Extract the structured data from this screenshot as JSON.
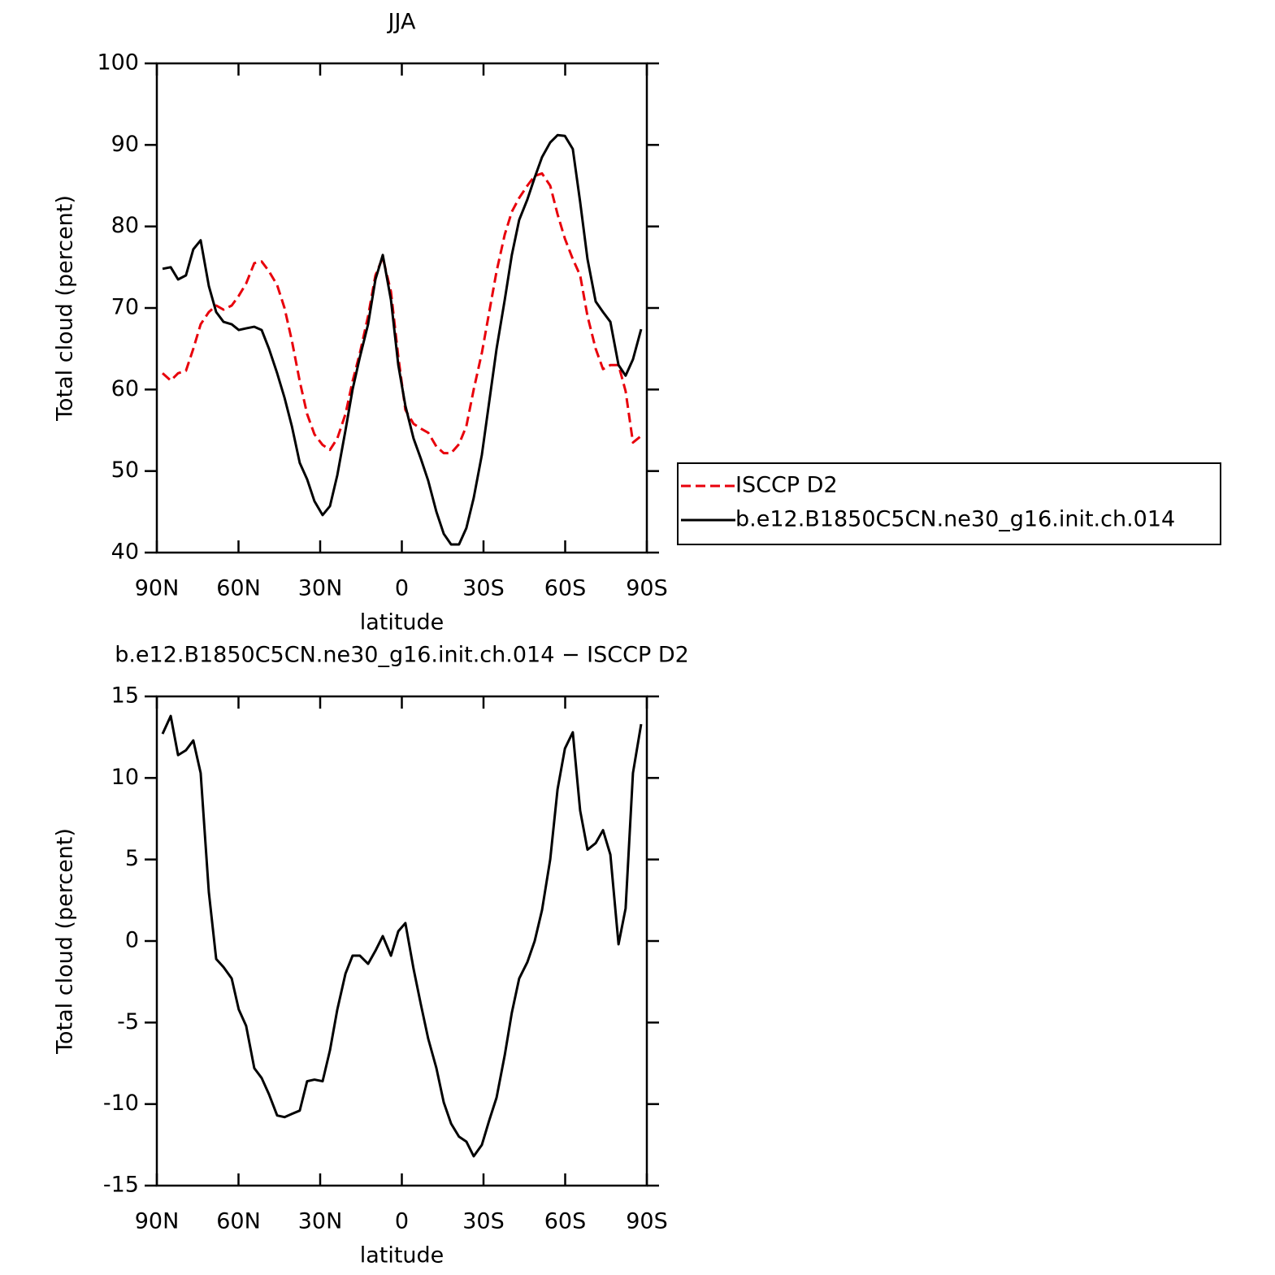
{
  "chart_data": [
    {
      "type": "line",
      "title": "JJA",
      "ylabel": "Total cloud (percent)",
      "xlabel": "latitude",
      "x": [
        87.9,
        84.9,
        82.2,
        79.3,
        76.6,
        73.9,
        70.9,
        68.2,
        65.5,
        62.5,
        59.9,
        57.2,
        54.2,
        51.5,
        48.8,
        45.8,
        43.1,
        40.4,
        37.5,
        34.8,
        32.1,
        29.1,
        26.4,
        23.7,
        20.7,
        18.1,
        15.4,
        12.4,
        9.7,
        7.0,
        4.0,
        1.3,
        -1.3,
        -4.3,
        -7.0,
        -9.7,
        -12.7,
        -15.4,
        -18.1,
        -21.0,
        -23.7,
        -26.4,
        -29.4,
        -32.1,
        -34.8,
        -37.8,
        -40.4,
        -43.1,
        -46.1,
        -48.8,
        -51.5,
        -54.5,
        -57.2,
        -59.9,
        -62.8,
        -65.5,
        -68.2,
        -71.2,
        -73.9,
        -76.6,
        -79.6,
        -82.2,
        -84.9,
        -87.9
      ],
      "series": [
        {
          "name": "ISCCP D2",
          "color": "#e8000b",
          "style": "dashed",
          "values": [
            62.0,
            61.1,
            62.0,
            62.3,
            65.0,
            68.0,
            69.5,
            70.3,
            69.8,
            70.3,
            71.5,
            73.0,
            75.5,
            75.7,
            74.5,
            72.8,
            70.0,
            66.0,
            61.0,
            57.0,
            54.5,
            53.2,
            52.6,
            54.0,
            57.0,
            61.0,
            64.5,
            69.0,
            74.0,
            76.2,
            72.0,
            64.0,
            57.5,
            55.8,
            55.2,
            54.7,
            53.0,
            52.2,
            52.2,
            53.3,
            55.5,
            60.0,
            64.5,
            69.5,
            74.5,
            79.0,
            81.8,
            83.5,
            85.0,
            86.2,
            86.5,
            85.0,
            81.5,
            78.5,
            76.0,
            74.0,
            69.0,
            65.0,
            62.5,
            63.0,
            63.0,
            59.8,
            53.5,
            54.3
          ]
        },
        {
          "name": "b.e12.B1850C5CN.ne30_g16.init.ch.014",
          "color": "#000000",
          "style": "solid",
          "values": [
            74.8,
            75.0,
            73.5,
            74.0,
            77.2,
            78.3,
            72.7,
            69.5,
            68.3,
            68.0,
            67.3,
            67.5,
            67.7,
            67.3,
            65.0,
            62.0,
            59.0,
            55.5,
            51.0,
            49.0,
            46.3,
            44.6,
            45.7,
            49.5,
            55.0,
            60.0,
            64.0,
            68.0,
            73.5,
            76.5,
            71.0,
            63.0,
            58.0,
            54.0,
            51.5,
            48.8,
            45.0,
            42.3,
            41.0,
            41.0,
            43.0,
            46.7,
            52.0,
            58.5,
            65.0,
            71.0,
            76.5,
            80.8,
            83.3,
            86.0,
            88.5,
            90.3,
            91.2,
            91.1,
            89.5,
            83.0,
            76.0,
            70.8,
            69.5,
            68.3,
            63.0,
            61.7,
            63.7,
            67.4
          ]
        }
      ],
      "xlim": [
        90,
        -90
      ],
      "xticks": [
        {
          "value": 90,
          "label": "90N"
        },
        {
          "value": 60,
          "label": "60N"
        },
        {
          "value": 30,
          "label": "30N"
        },
        0,
        {
          "value": -30,
          "label": "30S"
        },
        {
          "value": -60,
          "label": "60S"
        },
        {
          "value": -90,
          "label": "90S"
        }
      ],
      "ylim": [
        40,
        100
      ],
      "yticks": [
        40,
        50,
        60,
        70,
        80,
        90,
        100
      ],
      "legend": "right"
    },
    {
      "type": "line",
      "title": "b.e12.B1850C5CN.ne30_g16.init.ch.014 − ISCCP D2",
      "ylabel": "Total cloud (percent)",
      "xlabel": "latitude",
      "x": [
        87.9,
        84.9,
        82.2,
        79.3,
        76.6,
        73.9,
        70.9,
        68.2,
        65.5,
        62.5,
        59.9,
        57.2,
        54.2,
        51.5,
        48.8,
        45.8,
        43.1,
        40.4,
        37.5,
        34.8,
        32.1,
        29.1,
        26.4,
        23.7,
        20.7,
        18.1,
        15.4,
        12.4,
        9.7,
        7.0,
        4.0,
        1.3,
        -1.3,
        -4.3,
        -7.0,
        -9.7,
        -12.7,
        -15.4,
        -18.1,
        -21.0,
        -23.7,
        -26.4,
        -29.4,
        -32.1,
        -34.8,
        -37.8,
        -40.4,
        -43.1,
        -46.1,
        -48.8,
        -51.5,
        -54.5,
        -57.2,
        -59.9,
        -62.8,
        -65.5,
        -68.2,
        -71.2,
        -73.9,
        -76.6,
        -79.6,
        -82.2,
        -84.9,
        -87.9
      ],
      "series": [
        {
          "color": "#000000",
          "style": "solid",
          "values": [
            12.7,
            13.8,
            11.4,
            11.7,
            12.3,
            10.3,
            3.0,
            -1.1,
            -1.6,
            -2.3,
            -4.2,
            -5.2,
            -7.8,
            -8.4,
            -9.4,
            -10.7,
            -10.8,
            -10.6,
            -10.4,
            -8.6,
            -8.5,
            -8.6,
            -6.7,
            -4.2,
            -2.0,
            -0.9,
            -0.9,
            -1.4,
            -0.6,
            0.3,
            -0.9,
            0.6,
            1.1,
            -1.7,
            -3.9,
            -6.0,
            -7.8,
            -9.9,
            -11.2,
            -12.0,
            -12.3,
            -13.2,
            -12.5,
            -11.0,
            -9.6,
            -7.0,
            -4.4,
            -2.3,
            -1.3,
            0.0,
            1.9,
            5.0,
            9.3,
            11.8,
            12.8,
            8.0,
            5.6,
            6.0,
            6.8,
            5.3,
            -0.2,
            2.0,
            10.3,
            13.3
          ]
        }
      ],
      "xlim": [
        90,
        -90
      ],
      "xticks": [
        {
          "value": 90,
          "label": "90N"
        },
        {
          "value": 60,
          "label": "60N"
        },
        {
          "value": 30,
          "label": "30N"
        },
        0,
        {
          "value": -30,
          "label": "30S"
        },
        {
          "value": -60,
          "label": "60S"
        },
        {
          "value": -90,
          "label": "90S"
        }
      ],
      "ylim": [
        -15,
        15
      ],
      "yticks": [
        -15,
        -10,
        -5,
        0,
        5,
        10,
        15
      ]
    }
  ]
}
